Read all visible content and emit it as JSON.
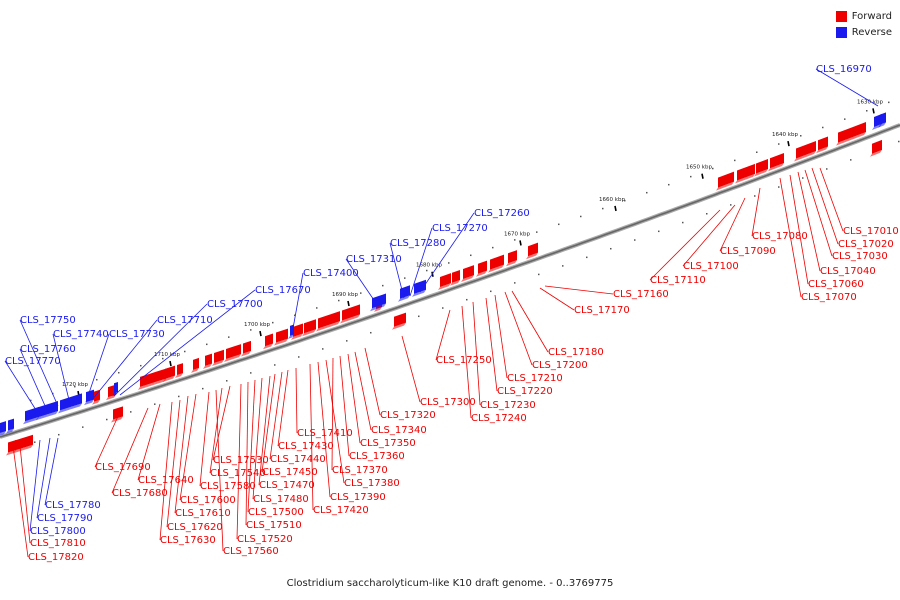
{
  "caption": "Clostridium saccharolyticum-like K10 draft genome. - 0..3769775",
  "legend": [
    {
      "label": "Forward",
      "color": "#ee0000"
    },
    {
      "label": "Reverse",
      "color": "#1a1aee"
    }
  ],
  "colors": {
    "forward": "#ee0000",
    "reverse": "#1a1aee",
    "backbone": "#777777"
  },
  "ticks": [
    "1630 kbp",
    "1640 kbp",
    "1650 kbp",
    "1660 kbp",
    "1670 kbp",
    "1680 kbp",
    "1690 kbp",
    "1700 kbp",
    "1710 kbp",
    "1720 kbp"
  ],
  "genes_forward": [
    "CLS_17010",
    "CLS_17020",
    "CLS_17030",
    "CLS_17040",
    "CLS_17060",
    "CLS_17070",
    "CLS_17080",
    "CLS_17090",
    "CLS_17100",
    "CLS_17110",
    "CLS_17160",
    "CLS_17170",
    "CLS_17180",
    "CLS_17200",
    "CLS_17210",
    "CLS_17220",
    "CLS_17230",
    "CLS_17240",
    "CLS_17250",
    "CLS_17300",
    "CLS_17320",
    "CLS_17340",
    "CLS_17350",
    "CLS_17360",
    "CLS_17370",
    "CLS_17380",
    "CLS_17390",
    "CLS_17410",
    "CLS_17420",
    "CLS_17430",
    "CLS_17440",
    "CLS_17450",
    "CLS_17470",
    "CLS_17480",
    "CLS_17500",
    "CLS_17510",
    "CLS_17520",
    "CLS_17530",
    "CLS_17540",
    "CLS_17560",
    "CLS_17580",
    "CLS_17600",
    "CLS_17610",
    "CLS_17620",
    "CLS_17630",
    "CLS_17640",
    "CLS_17680",
    "CLS_17690",
    "CLS_17810",
    "CLS_17820"
  ],
  "genes_reverse": [
    "CLS_16970",
    "CLS_17260",
    "CLS_17270",
    "CLS_17280",
    "CLS_17310",
    "CLS_17400",
    "CLS_17670",
    "CLS_17700",
    "CLS_17710",
    "CLS_17730",
    "CLS_17740",
    "CLS_17750",
    "CLS_17760",
    "CLS_17770",
    "CLS_17780",
    "CLS_17790",
    "CLS_17800"
  ]
}
